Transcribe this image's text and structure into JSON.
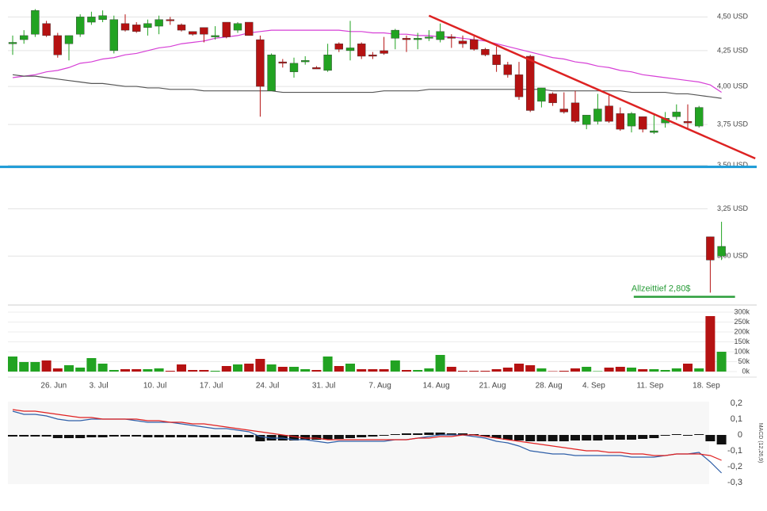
{
  "chart_data": [
    {
      "type": "candlestick",
      "log": true,
      "ylim": [
        2.78,
        4.6
      ],
      "up_color": "#22a322",
      "down_color": "#b51212",
      "yticks": [
        {
          "value": 4.5,
          "label": "4,50 USD"
        },
        {
          "value": 4.25,
          "label": "4,25 USD"
        },
        {
          "value": 4.0,
          "label": "4,00 USD"
        },
        {
          "value": 3.75,
          "label": "3,75 USD"
        },
        {
          "value": 3.5,
          "label": "3,50 USD"
        },
        {
          "value": 3.25,
          "label": "3,25 USD"
        },
        {
          "value": 3.0,
          "label": "3,00 USD"
        }
      ],
      "open": [
        4.3,
        4.33,
        4.37,
        4.45,
        4.36,
        4.3,
        4.37,
        4.46,
        4.48,
        4.25,
        4.45,
        4.44,
        4.42,
        4.43,
        4.48,
        4.44,
        4.39,
        4.42,
        4.35,
        4.46,
        4.4,
        4.46,
        4.33,
        3.97,
        4.17,
        4.1,
        4.17,
        4.13,
        4.11,
        4.3,
        4.25,
        4.3,
        4.22,
        4.25,
        4.34,
        4.34,
        4.33,
        4.34,
        4.33,
        4.35,
        4.32,
        4.33,
        4.26,
        4.22,
        4.15,
        4.08,
        4.21,
        3.9,
        3.95,
        3.85,
        3.89,
        3.75,
        3.77,
        3.87,
        3.82,
        3.74,
        3.8,
        3.7,
        3.76,
        3.8,
        3.77,
        3.74,
        3.1,
        3.0
      ],
      "high": [
        4.36,
        4.4,
        4.56,
        4.47,
        4.38,
        4.36,
        4.52,
        4.54,
        4.55,
        4.51,
        4.52,
        4.46,
        4.48,
        4.51,
        4.5,
        4.45,
        4.39,
        4.42,
        4.43,
        4.46,
        4.46,
        4.46,
        4.36,
        4.23,
        4.19,
        4.2,
        4.21,
        4.14,
        4.3,
        4.31,
        4.47,
        4.31,
        4.24,
        4.35,
        4.41,
        4.36,
        4.38,
        4.4,
        4.45,
        4.37,
        4.36,
        4.36,
        4.27,
        4.28,
        4.17,
        4.17,
        4.22,
        3.99,
        3.96,
        3.96,
        3.97,
        3.81,
        3.95,
        3.95,
        3.86,
        3.83,
        3.8,
        3.82,
        3.83,
        3.88,
        3.88,
        3.87,
        3.1,
        3.18
      ],
      "low": [
        4.22,
        4.3,
        4.35,
        4.35,
        4.2,
        4.18,
        4.35,
        4.44,
        4.46,
        4.23,
        4.39,
        4.38,
        4.36,
        4.37,
        4.44,
        4.39,
        4.36,
        4.31,
        4.33,
        4.34,
        4.38,
        4.36,
        3.8,
        3.97,
        4.13,
        4.06,
        4.15,
        4.12,
        4.1,
        4.24,
        4.18,
        4.19,
        4.19,
        4.22,
        4.26,
        4.24,
        4.26,
        4.32,
        4.31,
        4.27,
        4.27,
        4.25,
        4.21,
        4.1,
        4.06,
        3.91,
        3.83,
        3.86,
        3.87,
        3.82,
        3.76,
        3.72,
        3.75,
        3.76,
        3.71,
        3.7,
        3.7,
        3.69,
        3.73,
        3.78,
        3.72,
        3.73,
        2.82,
        2.98
      ],
      "close": [
        4.31,
        4.36,
        4.55,
        4.36,
        4.22,
        4.36,
        4.5,
        4.5,
        4.51,
        4.48,
        4.4,
        4.39,
        4.45,
        4.48,
        4.47,
        4.4,
        4.37,
        4.37,
        4.36,
        4.35,
        4.45,
        4.36,
        4.0,
        4.22,
        4.16,
        4.16,
        4.18,
        4.12,
        4.22,
        4.26,
        4.27,
        4.21,
        4.21,
        4.23,
        4.4,
        4.33,
        4.34,
        4.35,
        4.39,
        4.34,
        4.3,
        4.26,
        4.22,
        4.15,
        4.08,
        3.93,
        3.84,
        3.99,
        3.89,
        3.83,
        3.77,
        3.81,
        3.85,
        3.77,
        3.72,
        3.82,
        3.72,
        3.71,
        3.79,
        3.83,
        3.76,
        3.86,
        2.98,
        3.05
      ],
      "lines": [
        {
          "color": "#d63fd6",
          "values": [
            4.06,
            4.07,
            4.08,
            4.1,
            4.11,
            4.13,
            4.16,
            4.17,
            4.19,
            4.2,
            4.22,
            4.23,
            4.25,
            4.27,
            4.28,
            4.3,
            4.31,
            4.32,
            4.34,
            4.35,
            4.36,
            4.38,
            4.39,
            4.4,
            4.4,
            4.4,
            4.4,
            4.4,
            4.4,
            4.4,
            4.39,
            4.39,
            4.38,
            4.38,
            4.37,
            4.37,
            4.36,
            4.36,
            4.35,
            4.35,
            4.34,
            4.33,
            4.32,
            4.3,
            4.28,
            4.26,
            4.24,
            4.22,
            4.2,
            4.19,
            4.17,
            4.16,
            4.14,
            4.13,
            4.11,
            4.1,
            4.08,
            4.07,
            4.06,
            4.05,
            4.04,
            4.03,
            4.01,
            3.96
          ]
        },
        {
          "color": "#555555",
          "values": [
            4.08,
            4.07,
            4.07,
            4.06,
            4.05,
            4.04,
            4.03,
            4.02,
            4.02,
            4.01,
            4.0,
            4.0,
            3.99,
            3.99,
            3.98,
            3.98,
            3.98,
            3.97,
            3.97,
            3.97,
            3.97,
            3.97,
            3.97,
            3.97,
            3.96,
            3.96,
            3.96,
            3.96,
            3.96,
            3.96,
            3.96,
            3.96,
            3.96,
            3.97,
            3.97,
            3.97,
            3.97,
            3.98,
            3.98,
            3.98,
            3.98,
            3.98,
            3.98,
            3.98,
            3.98,
            3.98,
            3.98,
            3.98,
            3.97,
            3.97,
            3.97,
            3.97,
            3.97,
            3.97,
            3.97,
            3.96,
            3.96,
            3.96,
            3.96,
            3.95,
            3.95,
            3.94,
            3.93,
            3.92
          ]
        }
      ],
      "trendline": {
        "color": "#dd2222",
        "x": [
          37,
          66
        ],
        "y": [
          4.51,
          3.54
        ]
      },
      "hline": {
        "color": "#1a9ad6",
        "value": 3.49
      },
      "annotation": {
        "text": "Allzeittief 2,80$",
        "value": 2.8,
        "x": [
          55.2,
          64.2
        ],
        "color": "#2a9d3a"
      }
    },
    {
      "type": "bar",
      "ylim": [
        0,
        336000
      ],
      "yticks": [
        {
          "value": 0,
          "label": "0k"
        },
        {
          "value": 50000,
          "label": "50k"
        },
        {
          "value": 100000,
          "label": "100k"
        },
        {
          "value": 150000,
          "label": "150k"
        },
        {
          "value": 200000,
          "label": "200k"
        },
        {
          "value": 250000,
          "label": "250k"
        },
        {
          "value": 300000,
          "label": "300k"
        }
      ],
      "categories": [
        null,
        null,
        null,
        null,
        "26. Jun",
        null,
        null,
        null,
        "3. Jul",
        null,
        null,
        null,
        null,
        "10. Jul",
        null,
        null,
        null,
        null,
        "17. Jul",
        null,
        null,
        null,
        null,
        "24. Jul",
        null,
        null,
        null,
        null,
        "31. Jul",
        null,
        null,
        null,
        null,
        "7. Aug",
        null,
        null,
        null,
        null,
        "14. Aug",
        null,
        null,
        null,
        null,
        "21. Aug",
        null,
        null,
        null,
        null,
        "28. Aug",
        null,
        null,
        null,
        "4. Sep",
        null,
        null,
        null,
        null,
        "11. Sep",
        null,
        null,
        null,
        null,
        "18. Sep",
        null
      ],
      "values": [
        76000,
        48000,
        48000,
        56000,
        16000,
        32000,
        20000,
        68000,
        40000,
        8000,
        12000,
        12000,
        12000,
        16000,
        4000,
        36000,
        8000,
        8000,
        4000,
        28000,
        36000,
        40000,
        64000,
        36000,
        24000,
        24000,
        12000,
        8000,
        76000,
        28000,
        40000,
        12000,
        12000,
        12000,
        56000,
        8000,
        8000,
        16000,
        84000,
        24000,
        4000,
        4000,
        4000,
        12000,
        20000,
        40000,
        32000,
        16000,
        2000,
        4000,
        16000,
        24000,
        2000,
        20000,
        24000,
        20000,
        12000,
        12000,
        8000,
        16000,
        40000,
        16000,
        280000,
        100000
      ]
    },
    {
      "type": "line",
      "ylim": [
        -0.31,
        0.21
      ],
      "ylabel": "MACD (12,26,9)",
      "yticks": [
        {
          "value": 0.2,
          "label": "0,2"
        },
        {
          "value": 0.1,
          "label": "0,1"
        },
        0,
        {
          "value": -0.1,
          "label": "-0,1"
        },
        {
          "value": -0.2,
          "label": "-0,2"
        },
        {
          "value": -0.3,
          "label": "-0,3"
        }
      ],
      "series": [
        {
          "color": "#2f5fa8",
          "values": [
            0.15,
            0.13,
            0.13,
            0.12,
            0.1,
            0.09,
            0.09,
            0.1,
            0.1,
            0.1,
            0.1,
            0.09,
            0.08,
            0.08,
            0.08,
            0.07,
            0.06,
            0.05,
            0.04,
            0.04,
            0.03,
            0.02,
            -0.01,
            -0.02,
            -0.02,
            -0.03,
            -0.03,
            -0.04,
            -0.05,
            -0.04,
            -0.04,
            -0.04,
            -0.04,
            -0.04,
            -0.03,
            -0.03,
            -0.02,
            -0.01,
            0.0,
            0.0,
            0.0,
            -0.01,
            -0.02,
            -0.04,
            -0.05,
            -0.07,
            -0.1,
            -0.11,
            -0.12,
            -0.12,
            -0.13,
            -0.13,
            -0.13,
            -0.13,
            -0.13,
            -0.14,
            -0.14,
            -0.14,
            -0.13,
            -0.12,
            -0.12,
            -0.11,
            -0.17,
            -0.24
          ]
        },
        {
          "color": "#e02020",
          "values": [
            0.16,
            0.15,
            0.15,
            0.14,
            0.13,
            0.12,
            0.11,
            0.11,
            0.1,
            0.1,
            0.1,
            0.1,
            0.09,
            0.09,
            0.08,
            0.08,
            0.07,
            0.07,
            0.06,
            0.05,
            0.04,
            0.03,
            0.02,
            0.01,
            0.0,
            -0.01,
            -0.02,
            -0.02,
            -0.03,
            -0.03,
            -0.03,
            -0.03,
            -0.03,
            -0.03,
            -0.03,
            -0.03,
            -0.02,
            -0.02,
            -0.01,
            -0.01,
            0.0,
            0.0,
            -0.01,
            -0.02,
            -0.03,
            -0.04,
            -0.05,
            -0.06,
            -0.07,
            -0.08,
            -0.09,
            -0.1,
            -0.1,
            -0.11,
            -0.11,
            -0.12,
            -0.12,
            -0.13,
            -0.13,
            -0.12,
            -0.12,
            -0.12,
            -0.13,
            -0.16
          ]
        }
      ],
      "histogram": {
        "color": "#111111",
        "values": [
          -0.01,
          -0.01,
          -0.01,
          -0.01,
          -0.02,
          -0.02,
          -0.02,
          -0.015,
          -0.015,
          -0.01,
          -0.01,
          -0.01,
          -0.015,
          -0.015,
          -0.015,
          -0.015,
          -0.015,
          -0.015,
          -0.015,
          -0.015,
          -0.015,
          -0.015,
          -0.04,
          -0.035,
          -0.035,
          -0.035,
          -0.03,
          -0.03,
          -0.03,
          -0.025,
          -0.02,
          -0.015,
          -0.01,
          -0.005,
          0.005,
          0.01,
          0.01,
          0.015,
          0.015,
          0.01,
          0.01,
          0.005,
          -0.01,
          -0.02,
          -0.03,
          -0.035,
          -0.04,
          -0.04,
          -0.04,
          -0.04,
          -0.035,
          -0.035,
          -0.035,
          -0.03,
          -0.03,
          -0.03,
          -0.025,
          -0.02,
          -0.005,
          0.005,
          -0.005,
          0.005,
          -0.04,
          -0.06
        ]
      }
    }
  ]
}
